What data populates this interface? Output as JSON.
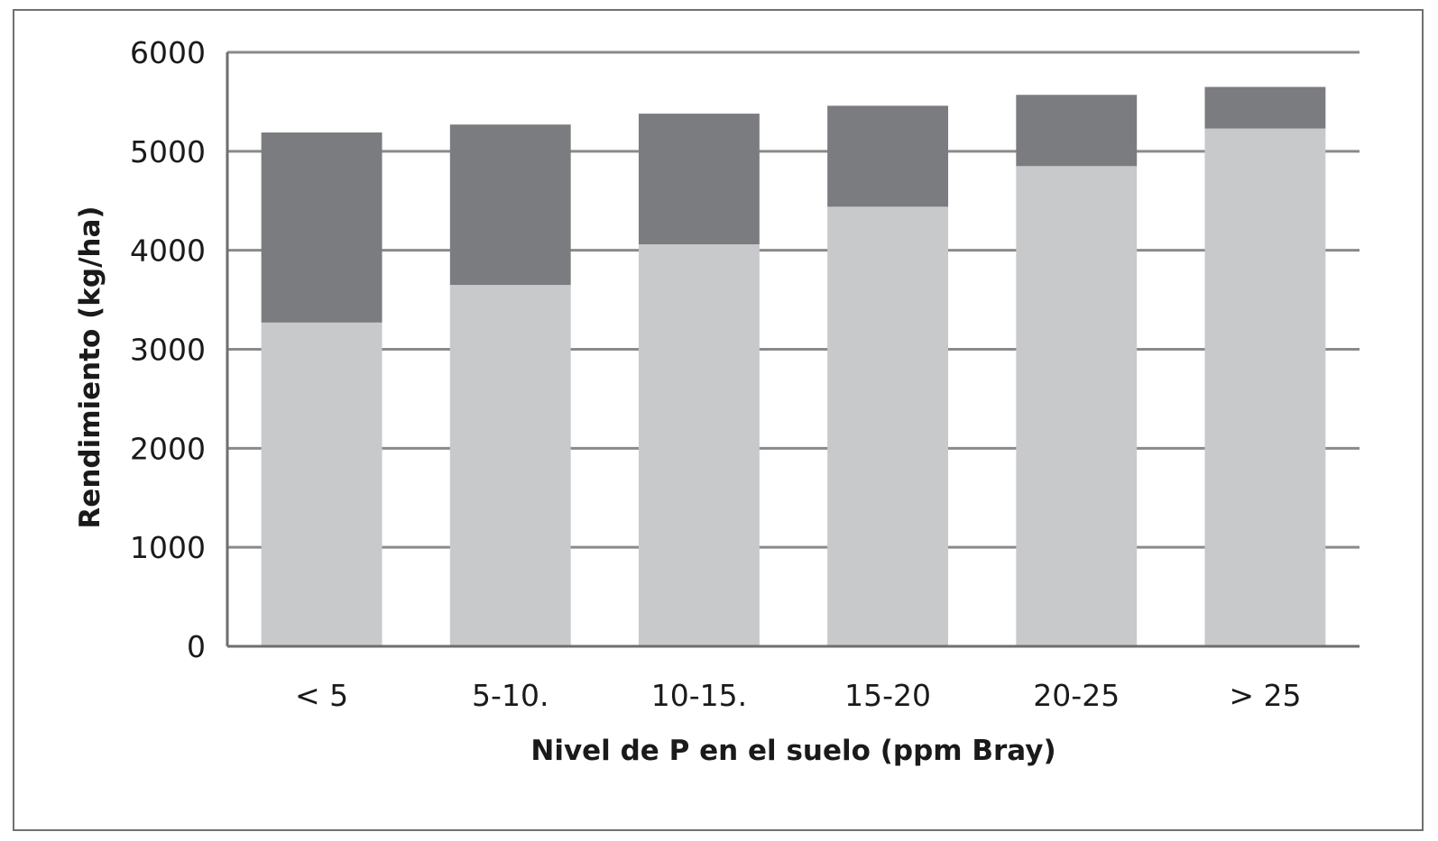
{
  "chart_data": {
    "type": "bar",
    "stacked": true,
    "title": "",
    "xlabel": "Nivel de P en el suelo  (ppm Bray)",
    "ylabel": "Rendimiento  (kg/ha)",
    "categories": [
      "< 5",
      "5-10.",
      "10-15.",
      "15-20",
      "20-25",
      "> 25"
    ],
    "series": [
      {
        "values": [
          3270,
          3650,
          4060,
          4440,
          4850,
          5230
        ],
        "color": "#c8c9cb"
      },
      {
        "values": [
          1920,
          1620,
          1320,
          1020,
          720,
          420
        ],
        "color": "#7b7c80"
      }
    ],
    "ylim": [
      0,
      6000
    ],
    "yticks": [
      0,
      1000,
      2000,
      3000,
      4000,
      5000,
      6000
    ],
    "grid": true,
    "legend": "none"
  }
}
